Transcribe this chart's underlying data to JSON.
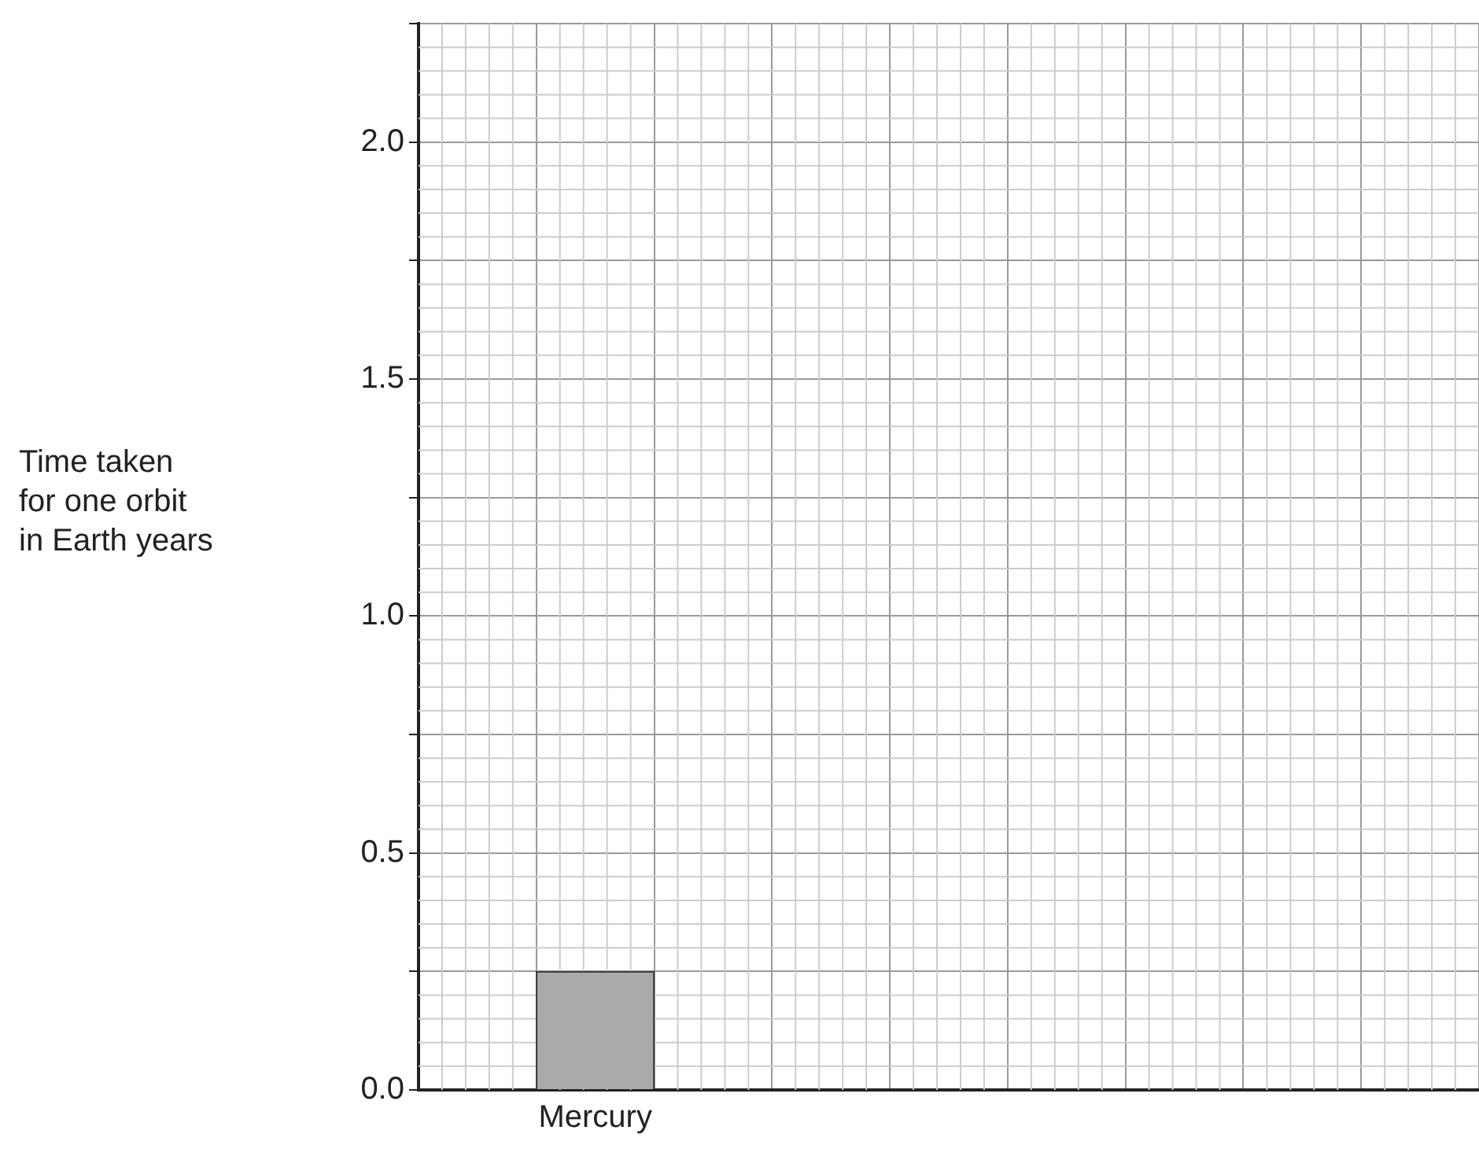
{
  "chart_data": {
    "type": "bar",
    "ylabel": "Time taken\nfor one orbit\nin Earth years",
    "categories": [
      null,
      "Mercury",
      null,
      null,
      null,
      null,
      null,
      null,
      null
    ],
    "values": [
      null,
      0.25,
      null,
      null,
      null,
      null,
      null,
      null,
      null
    ],
    "color": "#aaaaaa",
    "ylim": [
      0,
      2.25
    ],
    "yticks": [
      {
        "value": 0,
        "label": "0.0"
      },
      {
        "value": 0.25,
        "label": null
      },
      {
        "value": 0.5,
        "label": "0.5"
      },
      {
        "value": 0.75,
        "label": null
      },
      {
        "value": 1,
        "label": "1.0"
      },
      {
        "value": 1.25,
        "label": null
      },
      {
        "value": 1.5,
        "label": "1.5"
      },
      {
        "value": 1.75,
        "label": null
      },
      {
        "value": 2,
        "label": "2.0"
      },
      {
        "value": 2.25,
        "label": null
      }
    ],
    "grid": true,
    "legend": false
  }
}
